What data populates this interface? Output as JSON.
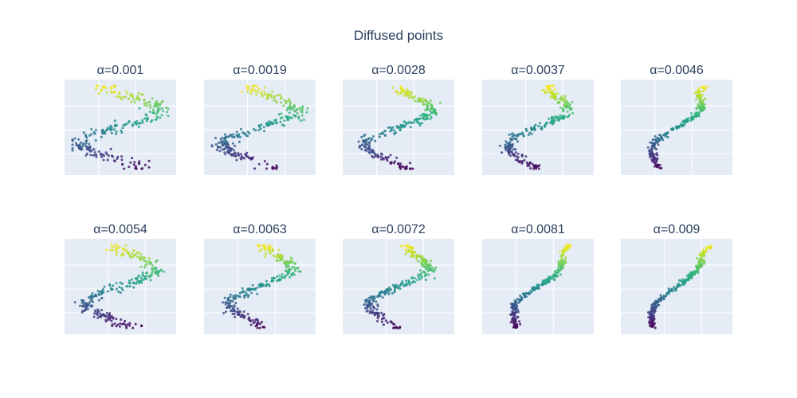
{
  "title": "Diffused points",
  "chart_data": {
    "type": "scatter",
    "title": "Diffused points",
    "colorscale": "viridis",
    "grid": true,
    "colors": {
      "panel_background": "#e5ecf6",
      "gridline": "#ffffff",
      "title": "#2a3f5f"
    },
    "panels": [
      {
        "label": "α=0.001",
        "shape": "S",
        "amp": 0.95,
        "noise": 0.06,
        "curl": 0.15
      },
      {
        "label": "α=0.0019",
        "shape": "S",
        "amp": 0.85,
        "noise": 0.055,
        "curl": 0.2
      },
      {
        "label": "α=0.0028",
        "shape": "S",
        "amp": 0.7,
        "noise": 0.04,
        "curl": 0.3
      },
      {
        "label": "α=0.0037",
        "shape": "S",
        "amp": 0.55,
        "noise": 0.04,
        "curl": 0.3
      },
      {
        "label": "α=0.0046",
        "shape": "S",
        "amp": 0.3,
        "noise": 0.02,
        "curl": 0.35
      },
      {
        "label": "α=0.0054",
        "shape": "S",
        "amp": 0.8,
        "noise": 0.05,
        "curl": 0.25
      },
      {
        "label": "α=0.0063",
        "shape": "S",
        "amp": 0.65,
        "noise": 0.04,
        "curl": 0.3
      },
      {
        "label": "α=0.0072",
        "shape": "S",
        "amp": 0.55,
        "noise": 0.035,
        "curl": 0.3
      },
      {
        "label": "α=0.0081",
        "shape": "S",
        "amp": 0.25,
        "noise": 0.02,
        "curl": 0.35
      },
      {
        "label": "α=0.009",
        "shape": "S",
        "amp": 0.2,
        "noise": 0.018,
        "curl": 0.35
      }
    ]
  }
}
